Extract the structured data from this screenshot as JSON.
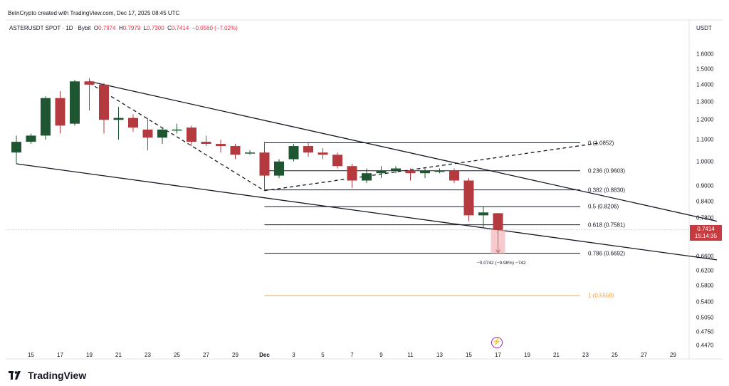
{
  "header": {
    "credit": "BeInCrypto created with TradingView.com, Dec 17, 2025 08:45 UTC"
  },
  "symbol": {
    "name": "ASTERUSDT SPOT · 1D · Bybit",
    "o_label": "O",
    "o": "0.7974",
    "h_label": "H",
    "h": "0.7979",
    "l_label": "L",
    "l": "0.7300",
    "c_label": "C",
    "c": "0.7414",
    "change": "−0.0560 (−7.02%)"
  },
  "currency": "USDT",
  "price_badge": {
    "price": "0.7414",
    "countdown": "15:14:35"
  },
  "measure_label": "−0.0742 (−9.98%) −742",
  "brand": "TradingView",
  "colors": {
    "up": "#1e5631",
    "down": "#b53a3f",
    "fib_orange": "#f2a242",
    "badge": "#c93a3f"
  },
  "icons": [
    "tradingview-logo-icon",
    "lightning-icon"
  ],
  "chart_data": {
    "type": "candlestick",
    "y_scale": "log",
    "ylim": [
      0.44,
      1.75
    ],
    "y_ticks": [
      "1.6000",
      "1.5000",
      "1.4000",
      "1.3000",
      "1.2000",
      "1.1000",
      "1.0000",
      "0.9000",
      "0.8400",
      "0.7800",
      "0.6600",
      "0.6200",
      "0.5800",
      "0.5400",
      "0.5050",
      "0.4750",
      "0.4470"
    ],
    "x_ticks": [
      "15",
      "17",
      "19",
      "21",
      "23",
      "25",
      "27",
      "29",
      "Dec",
      "3",
      "5",
      "7",
      "9",
      "11",
      "13",
      "15",
      "17",
      "19",
      "21",
      "23",
      "25",
      "27",
      "29"
    ],
    "candles": [
      {
        "date": "Nov 14",
        "o": 1.04,
        "h": 1.12,
        "l": 0.99,
        "c": 1.09
      },
      {
        "date": "Nov 15",
        "o": 1.09,
        "h": 1.13,
        "l": 1.08,
        "c": 1.12
      },
      {
        "date": "Nov 16",
        "o": 1.12,
        "h": 1.33,
        "l": 1.1,
        "c": 1.32
      },
      {
        "date": "Nov 17",
        "o": 1.32,
        "h": 1.36,
        "l": 1.13,
        "c": 1.17
      },
      {
        "date": "Nov 18",
        "o": 1.18,
        "h": 1.43,
        "l": 1.17,
        "c": 1.42
      },
      {
        "date": "Nov 19",
        "o": 1.42,
        "h": 1.44,
        "l": 1.25,
        "c": 1.4
      },
      {
        "date": "Nov 20",
        "o": 1.4,
        "h": 1.41,
        "l": 1.13,
        "c": 1.2
      },
      {
        "date": "Nov 21",
        "o": 1.2,
        "h": 1.27,
        "l": 1.1,
        "c": 1.21
      },
      {
        "date": "Nov 22",
        "o": 1.21,
        "h": 1.23,
        "l": 1.14,
        "c": 1.16
      },
      {
        "date": "Nov 23",
        "o": 1.15,
        "h": 1.21,
        "l": 1.05,
        "c": 1.11
      },
      {
        "date": "Nov 24",
        "o": 1.11,
        "h": 1.16,
        "l": 1.08,
        "c": 1.15
      },
      {
        "date": "Nov 25",
        "o": 1.15,
        "h": 1.18,
        "l": 1.13,
        "c": 1.15
      },
      {
        "date": "Nov 26",
        "o": 1.16,
        "h": 1.17,
        "l": 1.07,
        "c": 1.09
      },
      {
        "date": "Nov 27",
        "o": 1.09,
        "h": 1.12,
        "l": 1.07,
        "c": 1.08
      },
      {
        "date": "Nov 28",
        "o": 1.08,
        "h": 1.1,
        "l": 1.04,
        "c": 1.07
      },
      {
        "date": "Nov 29",
        "o": 1.07,
        "h": 1.08,
        "l": 1.01,
        "c": 1.03
      },
      {
        "date": "Nov 30",
        "o": 1.04,
        "h": 1.05,
        "l": 1.03,
        "c": 1.04
      },
      {
        "date": "Dec 1",
        "o": 1.04,
        "h": 1.09,
        "l": 0.88,
        "c": 0.94
      },
      {
        "date": "Dec 2",
        "o": 0.94,
        "h": 1.01,
        "l": 0.93,
        "c": 1.0
      },
      {
        "date": "Dec 3",
        "o": 1.01,
        "h": 1.08,
        "l": 1.0,
        "c": 1.07
      },
      {
        "date": "Dec 4",
        "o": 1.07,
        "h": 1.09,
        "l": 1.02,
        "c": 1.04
      },
      {
        "date": "Dec 5",
        "o": 1.04,
        "h": 1.06,
        "l": 1.01,
        "c": 1.03
      },
      {
        "date": "Dec 6",
        "o": 1.03,
        "h": 1.04,
        "l": 0.97,
        "c": 0.98
      },
      {
        "date": "Dec 7",
        "o": 0.98,
        "h": 0.99,
        "l": 0.89,
        "c": 0.92
      },
      {
        "date": "Dec 8",
        "o": 0.92,
        "h": 0.97,
        "l": 0.91,
        "c": 0.95
      },
      {
        "date": "Dec 9",
        "o": 0.95,
        "h": 0.98,
        "l": 0.93,
        "c": 0.96
      },
      {
        "date": "Dec 10",
        "o": 0.96,
        "h": 0.98,
        "l": 0.95,
        "c": 0.97
      },
      {
        "date": "Dec 11",
        "o": 0.96,
        "h": 0.97,
        "l": 0.92,
        "c": 0.95
      },
      {
        "date": "Dec 12",
        "o": 0.95,
        "h": 0.97,
        "l": 0.93,
        "c": 0.96
      },
      {
        "date": "Dec 13",
        "o": 0.96,
        "h": 0.97,
        "l": 0.95,
        "c": 0.96
      },
      {
        "date": "Dec 14",
        "o": 0.96,
        "h": 0.97,
        "l": 0.91,
        "c": 0.92
      },
      {
        "date": "Dec 15",
        "o": 0.92,
        "h": 0.93,
        "l": 0.77,
        "c": 0.79
      },
      {
        "date": "Dec 16",
        "o": 0.79,
        "h": 0.82,
        "l": 0.75,
        "c": 0.8
      },
      {
        "date": "Dec 17",
        "o": 0.7974,
        "h": 0.7979,
        "l": 0.73,
        "c": 0.7414
      }
    ],
    "fib_levels": [
      {
        "ratio": "0",
        "value": 1.0852,
        "label": "0 (1.0852)"
      },
      {
        "ratio": "0.236",
        "value": 0.9603,
        "label": "0.236 (0.9603)"
      },
      {
        "ratio": "0.382",
        "value": 0.883,
        "label": "0.382 (0.8830)"
      },
      {
        "ratio": "0.5",
        "value": 0.8206,
        "label": "0.5 (0.8206)"
      },
      {
        "ratio": "0.618",
        "value": 0.7581,
        "label": "0.618 (0.7581)"
      },
      {
        "ratio": "0.786",
        "value": 0.6692,
        "label": "0.786 (0.6692)"
      },
      {
        "ratio": "1",
        "value": 0.5559,
        "label": "1 (0.5559)"
      }
    ],
    "trend_lines": [
      {
        "style": "solid",
        "from": [
          "Nov 19",
          1.42
        ],
        "to": [
          "Jan 1",
          0.77
        ]
      },
      {
        "style": "solid",
        "from": [
          "Nov 14",
          0.99
        ],
        "to": [
          "Jan 1",
          0.65
        ]
      },
      {
        "style": "dashed",
        "from": [
          "Nov 19",
          1.41
        ],
        "to": [
          "Dec 1",
          0.88
        ]
      },
      {
        "style": "dashed",
        "from": [
          "Dec 1",
          0.88
        ],
        "to": [
          "Dec 24",
          1.085
        ]
      }
    ],
    "current_price": 0.7414
  }
}
